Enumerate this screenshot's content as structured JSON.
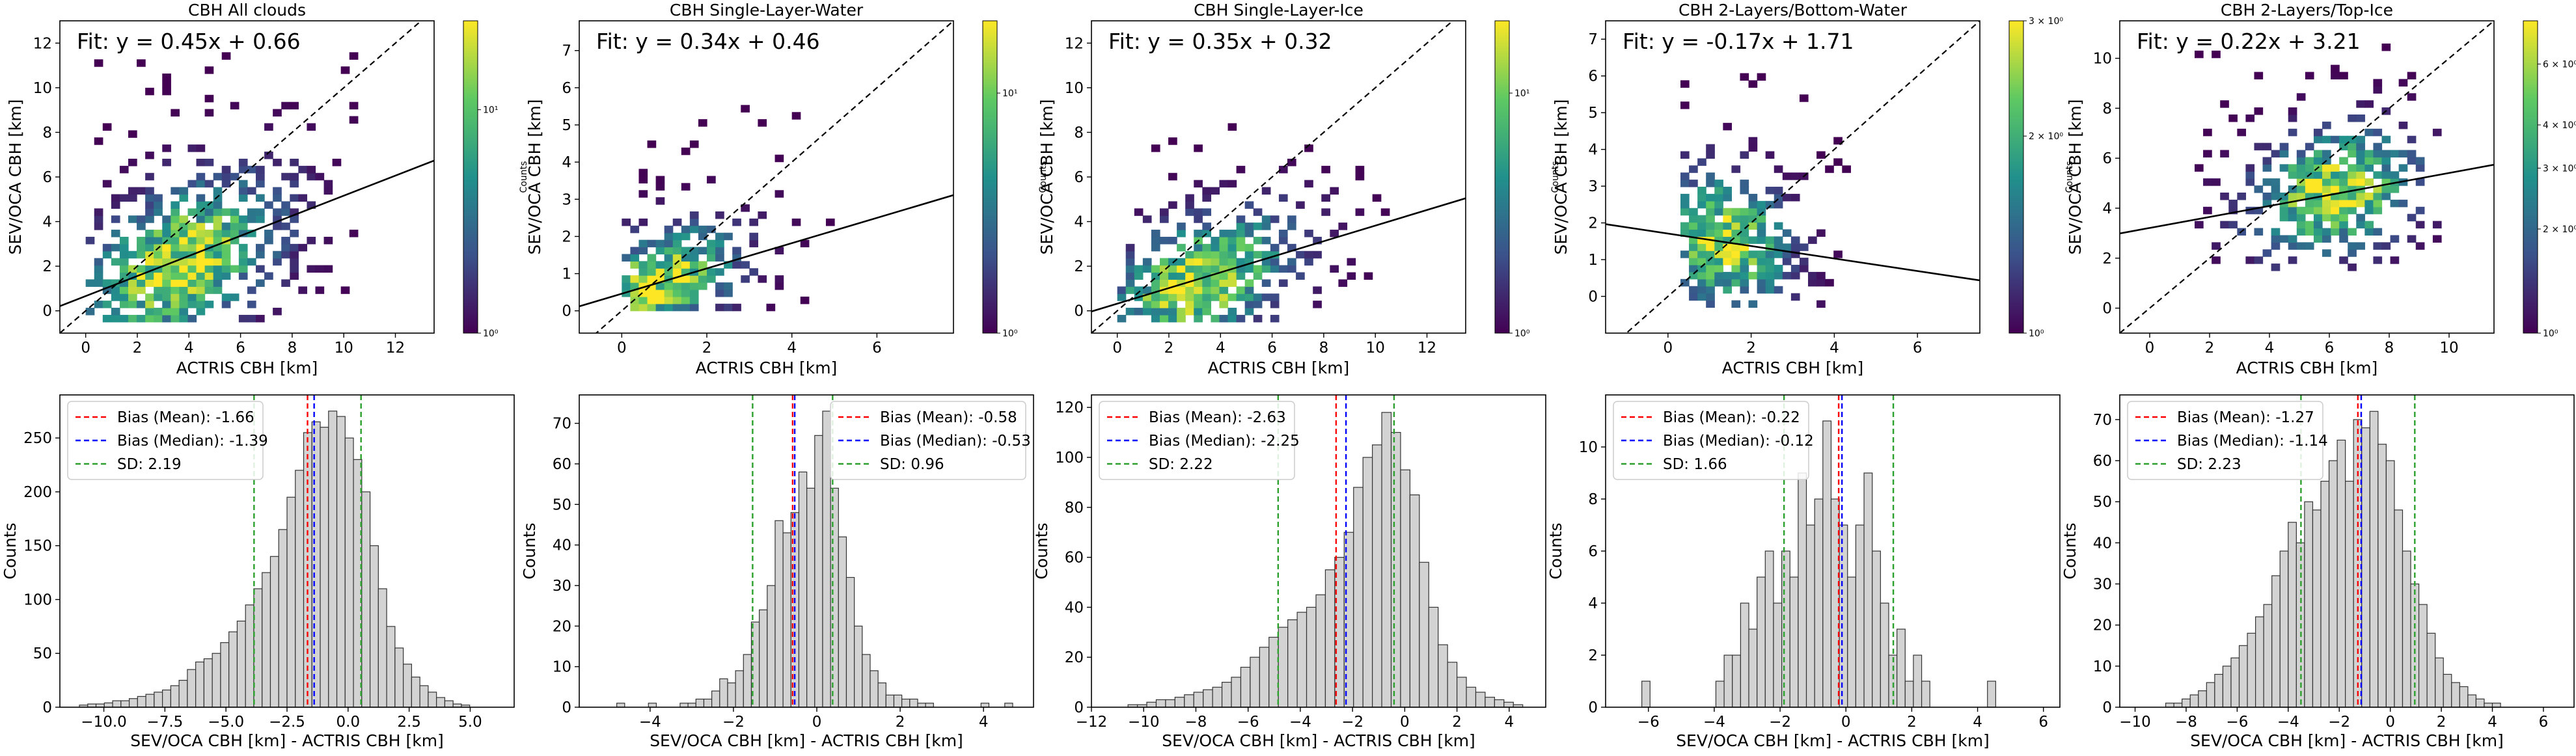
{
  "colors": {
    "bar_fill": "#d3d3d3",
    "bar_edge": "#333333",
    "bias_mean": "#ff0000",
    "bias_median": "#0000ff",
    "sd": "#2ca02c",
    "fit_line": "#000000",
    "identity_line": "#000000",
    "colormap": [
      "#440154",
      "#3b528b",
      "#21918c",
      "#5ec962",
      "#fde725"
    ]
  },
  "chart_data": [
    {
      "type": "heatmap",
      "title": "CBH All clouds",
      "xlabel": "ACTRIS CBH [km]",
      "ylabel": "SEV/OCA CBH [km]",
      "xlim": [
        -1,
        13.5
      ],
      "ylim": [
        -1,
        13
      ],
      "xticks": [
        0,
        2,
        4,
        6,
        8,
        10,
        12
      ],
      "yticks": [
        0,
        2,
        4,
        6,
        8,
        10,
        12
      ],
      "fit_label": "Fit: y = 0.45x + 0.66",
      "fit": {
        "slope": 0.45,
        "intercept": 0.66
      },
      "identity_line": true,
      "colorbar": {
        "label": "Counts",
        "scale": "log",
        "ticks": [
          "10⁰",
          "10¹"
        ],
        "min": 1,
        "max": 25
      },
      "density": {
        "xrange": [
          0,
          10.5
        ],
        "yrange": [
          -0.5,
          11.5
        ],
        "center": [
          3.5,
          2.0
        ],
        "spread": [
          2.5,
          2.2
        ]
      }
    },
    {
      "type": "heatmap",
      "title": "CBH Single-Layer-Water",
      "xlabel": "ACTRIS CBH [km]",
      "ylabel": "SEV/OCA CBH [km]",
      "xlim": [
        -1,
        7.8
      ],
      "ylim": [
        -0.6,
        7.8
      ],
      "xticks": [
        0,
        2,
        4,
        6
      ],
      "yticks": [
        0,
        1,
        2,
        3,
        4,
        5,
        6,
        7
      ],
      "fit_label": "Fit: y = 0.34x + 0.46",
      "fit": {
        "slope": 0.34,
        "intercept": 0.46
      },
      "identity_line": true,
      "colorbar": {
        "label": "Counts",
        "scale": "log",
        "ticks": [
          "10⁰",
          "10¹"
        ],
        "min": 1,
        "max": 20
      },
      "density": {
        "xrange": [
          0,
          5
        ],
        "yrange": [
          0,
          5.5
        ],
        "center": [
          0.8,
          0.7
        ],
        "spread": [
          1.2,
          0.9
        ]
      }
    },
    {
      "type": "heatmap",
      "title": "CBH Single-Layer-Ice",
      "xlabel": "ACTRIS CBH [km]",
      "ylabel": "SEV/OCA CBH [km]",
      "xlim": [
        -1,
        13.5
      ],
      "ylim": [
        -1,
        13
      ],
      "xticks": [
        0,
        2,
        4,
        6,
        8,
        10,
        12
      ],
      "yticks": [
        0,
        2,
        4,
        6,
        8,
        10,
        12
      ],
      "fit_label": "Fit: y = 0.35x + 0.32",
      "fit": {
        "slope": 0.35,
        "intercept": 0.32
      },
      "identity_line": true,
      "colorbar": {
        "label": "Counts",
        "scale": "log",
        "ticks": [
          "10⁰",
          "10¹"
        ],
        "min": 1,
        "max": 20
      },
      "density": {
        "xrange": [
          0,
          10.5
        ],
        "yrange": [
          -0.5,
          9
        ],
        "center": [
          3.0,
          1.2
        ],
        "spread": [
          2.4,
          1.8
        ]
      }
    },
    {
      "type": "heatmap",
      "title": "CBH 2-Layers/Bottom-Water",
      "xlabel": "ACTRIS CBH [km]",
      "ylabel": "SEV/OCA CBH [km]",
      "xlim": [
        -1.5,
        7.5
      ],
      "ylim": [
        -1,
        7.5
      ],
      "xticks": [
        0,
        2,
        4,
        6
      ],
      "yticks": [
        0,
        1,
        2,
        3,
        4,
        5,
        6,
        7
      ],
      "fit_label": "Fit: y = -0.17x + 1.71",
      "fit": {
        "slope": -0.17,
        "intercept": 1.71
      },
      "identity_line": true,
      "colorbar": {
        "label": "Counts",
        "scale": "log",
        "ticks": [
          "10⁰",
          "2 × 10⁰",
          "3 × 10⁰"
        ],
        "min": 1,
        "max": 3
      },
      "density": {
        "xrange": [
          0.3,
          4.5
        ],
        "yrange": [
          -0.3,
          6.5
        ],
        "center": [
          1.3,
          1.4
        ],
        "spread": [
          1.0,
          1.2
        ]
      }
    },
    {
      "type": "heatmap",
      "title": "CBH 2-Layers/Top-Ice",
      "xlabel": "ACTRIS CBH [km]",
      "ylabel": "SEV/OCA CBH [km]",
      "xlim": [
        -1,
        11.5
      ],
      "ylim": [
        -1,
        11.5
      ],
      "xticks": [
        0,
        2,
        4,
        6,
        8,
        10
      ],
      "yticks": [
        0,
        2,
        4,
        6,
        8,
        10
      ],
      "fit_label": "Fit: y = 0.22x + 3.21",
      "fit": {
        "slope": 0.22,
        "intercept": 3.21
      },
      "identity_line": true,
      "colorbar": {
        "label": "Counts",
        "scale": "log",
        "ticks": [
          "10⁰",
          "2 × 10⁰",
          "3 × 10⁰",
          "4 × 10⁰",
          "6 × 10⁰"
        ],
        "min": 1,
        "max": 8
      },
      "density": {
        "xrange": [
          1.5,
          9.5
        ],
        "yrange": [
          1.5,
          10.5
        ],
        "center": [
          6.0,
          4.5
        ],
        "spread": [
          1.8,
          1.6
        ]
      }
    },
    {
      "type": "bar",
      "title": "",
      "xlabel": "SEV/OCA CBH [km] - ACTRIS CBH [km]",
      "ylabel": "Counts",
      "xlim": [
        -11.8,
        6.8
      ],
      "ylim": [
        0,
        290
      ],
      "xticks": [
        -10,
        -7.5,
        -5,
        -2.5,
        0,
        2.5,
        5
      ],
      "xticklabels": [
        "−10.0",
        "−7.5",
        "−5.0",
        "−2.5",
        "0.0",
        "2.5",
        "5.0"
      ],
      "yticks": [
        0,
        50,
        100,
        150,
        200,
        250
      ],
      "bin_start": -11.0,
      "bin_width": 0.34,
      "values": [
        2,
        3,
        3,
        4,
        6,
        6,
        8,
        10,
        12,
        14,
        16,
        20,
        25,
        35,
        42,
        45,
        50,
        60,
        70,
        80,
        95,
        110,
        125,
        140,
        165,
        195,
        220,
        255,
        265,
        260,
        275,
        270,
        250,
        230,
        200,
        150,
        110,
        75,
        55,
        40,
        28,
        20,
        14,
        9,
        6,
        3,
        2
      ],
      "lines": [
        {
          "name": "Bias (Mean): -1.66",
          "x": -1.66,
          "style": "mean"
        },
        {
          "name": "Bias (Median): -1.39",
          "x": -1.39,
          "style": "median"
        },
        {
          "name": "SD: 2.19",
          "x": [
            -3.85,
            0.53
          ],
          "style": "sd"
        }
      ],
      "legend": "top-left"
    },
    {
      "type": "bar",
      "title": "",
      "xlabel": "SEV/OCA CBH [km] - ACTRIS CBH [km]",
      "ylabel": "Counts",
      "xlim": [
        -5.7,
        5.2
      ],
      "ylim": [
        0,
        77
      ],
      "xticks": [
        -4,
        -2,
        0,
        2,
        4
      ],
      "xticklabels": [
        "−4",
        "−2",
        "0",
        "2",
        "4"
      ],
      "yticks": [
        0,
        10,
        20,
        30,
        40,
        50,
        60,
        70
      ],
      "bin_start": -4.8,
      "bin_width": 0.19,
      "values": [
        1,
        0,
        0,
        0,
        1,
        0,
        0,
        0,
        1,
        1,
        2,
        2,
        4,
        7,
        6,
        9,
        13,
        21,
        24,
        30,
        46,
        43,
        48,
        58,
        54,
        67,
        73,
        54,
        42,
        32,
        20,
        13,
        9,
        6,
        3,
        3,
        2,
        2,
        1,
        1,
        0,
        0,
        0,
        0,
        0,
        0,
        1,
        0,
        0,
        1
      ],
      "lines": [
        {
          "name": "Bias (Mean): -0.58",
          "x": -0.58,
          "style": "mean"
        },
        {
          "name": "Bias (Median): -0.53",
          "x": -0.53,
          "style": "median"
        },
        {
          "name": "SD: 0.96",
          "x": [
            -1.54,
            0.38
          ],
          "style": "sd"
        }
      ],
      "legend": "top-right"
    },
    {
      "type": "bar",
      "title": "",
      "xlabel": "SEV/OCA CBH [km] - ACTRIS CBH [km]",
      "ylabel": "Counts",
      "xlim": [
        -12,
        5.4
      ],
      "ylim": [
        0,
        125
      ],
      "xticks": [
        -12,
        -10,
        -8,
        -6,
        -4,
        -2,
        0,
        2,
        4
      ],
      "xticklabels": [
        "−12",
        "−10",
        "−8",
        "−6",
        "−4",
        "−2",
        "0",
        "2",
        "4"
      ],
      "yticks": [
        0,
        20,
        40,
        60,
        80,
        100,
        120
      ],
      "bin_start": -10.6,
      "bin_width": 0.36,
      "values": [
        1,
        1,
        2,
        3,
        3,
        4,
        5,
        6,
        7,
        8,
        10,
        12,
        16,
        20,
        24,
        28,
        32,
        35,
        38,
        40,
        45,
        55,
        60,
        70,
        88,
        100,
        105,
        118,
        110,
        95,
        85,
        58,
        40,
        25,
        18,
        12,
        8,
        6,
        4,
        3,
        2,
        1
      ],
      "lines": [
        {
          "name": "Bias (Mean): -2.63",
          "x": -2.63,
          "style": "mean"
        },
        {
          "name": "Bias (Median): -2.25",
          "x": -2.25,
          "style": "median"
        },
        {
          "name": "SD: 2.22",
          "x": [
            -4.85,
            -0.41
          ],
          "style": "sd"
        }
      ],
      "legend": "top-left"
    },
    {
      "type": "bar",
      "title": "",
      "xlabel": "SEV/OCA CBH [km] - ACTRIS CBH [km]",
      "ylabel": "Counts",
      "xlim": [
        -7.3,
        6.5
      ],
      "ylim": [
        0,
        12
      ],
      "xticks": [
        -6,
        -4,
        -2,
        0,
        2,
        4,
        6
      ],
      "xticklabels": [
        "−6",
        "−4",
        "−2",
        "0",
        "2",
        "4",
        "6"
      ],
      "yticks": [
        0,
        2,
        4,
        6,
        8,
        10
      ],
      "bin_start": -6.2,
      "bin_width": 0.25,
      "values": [
        1,
        0,
        0,
        0,
        0,
        0,
        0,
        0,
        0,
        1,
        2,
        2,
        4,
        3,
        5,
        6,
        4,
        6,
        5,
        9,
        7,
        8,
        11,
        8,
        7,
        5,
        7,
        9,
        6,
        4,
        2,
        3,
        1,
        2,
        1,
        0,
        0,
        0,
        0,
        0,
        0,
        0,
        1
      ],
      "lines": [
        {
          "name": "Bias (Mean): -0.22",
          "x": -0.22,
          "style": "mean"
        },
        {
          "name": "Bias (Median): -0.12",
          "x": -0.12,
          "style": "median"
        },
        {
          "name": "SD: 1.66",
          "x": [
            -1.88,
            1.44
          ],
          "style": "sd"
        }
      ],
      "legend": "top-left"
    },
    {
      "type": "bar",
      "title": "",
      "xlabel": "SEV/OCA CBH [km] - ACTRIS CBH [km]",
      "ylabel": "Counts",
      "xlim": [
        -10.6,
        7.2
      ],
      "ylim": [
        0,
        76
      ],
      "xticks": [
        -10,
        -8,
        -6,
        -4,
        -2,
        0,
        2,
        4,
        6
      ],
      "xticklabels": [
        "−10",
        "−8",
        "−6",
        "−4",
        "−2",
        "0",
        "2",
        "4",
        "6"
      ],
      "yticks": [
        0,
        10,
        20,
        30,
        40,
        50,
        60,
        70
      ],
      "bin_start": -8.8,
      "bin_width": 0.32,
      "values": [
        1,
        1,
        2,
        3,
        4,
        6,
        8,
        10,
        12,
        15,
        18,
        22,
        25,
        32,
        38,
        45,
        40,
        50,
        48,
        55,
        60,
        65,
        55,
        70,
        68,
        72,
        64,
        60,
        48,
        38,
        30,
        25,
        18,
        12,
        8,
        6,
        5,
        3,
        2,
        1,
        1
      ],
      "lines": [
        {
          "name": "Bias (Mean): -1.27",
          "x": -1.27,
          "style": "mean"
        },
        {
          "name": "Bias (Median): -1.14",
          "x": -1.14,
          "style": "median"
        },
        {
          "name": "SD: 2.23",
          "x": [
            -3.5,
            0.96
          ],
          "style": "sd"
        }
      ],
      "legend": "top-left"
    }
  ]
}
